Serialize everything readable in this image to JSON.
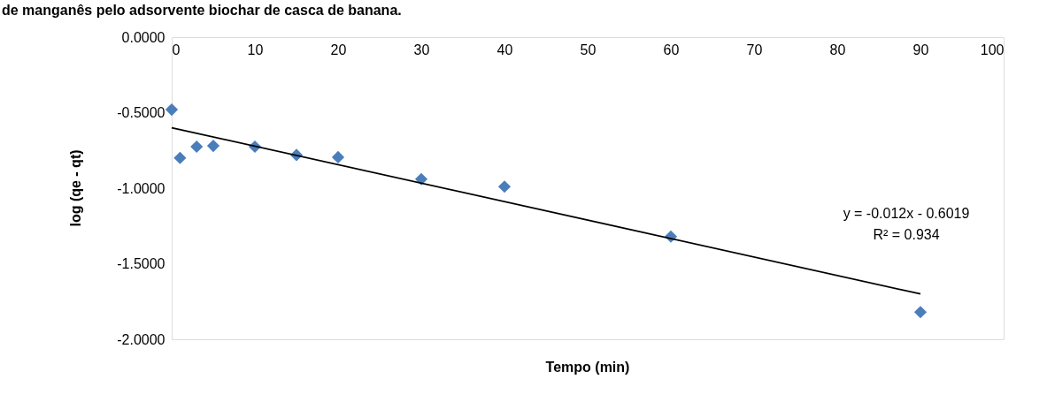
{
  "chart_data": {
    "type": "scatter",
    "title": "de manganês pelo adsorvente biochar de casca de banana.",
    "xlabel": "Tempo (min)",
    "ylabel": "log (qe - qt)",
    "xlim": [
      0,
      100
    ],
    "xticks": [
      0,
      10,
      20,
      30,
      40,
      50,
      60,
      70,
      80,
      90,
      100
    ],
    "ylim": [
      -2,
      0
    ],
    "yticks": [
      {
        "value": -2,
        "label": "-2.0000"
      },
      {
        "value": -1.5,
        "label": "-1.5000"
      },
      {
        "value": -1,
        "label": "-1.0000"
      },
      {
        "value": -0.5,
        "label": "-0.5000"
      },
      {
        "value": 0,
        "label": "0.0000"
      }
    ],
    "grid": false,
    "marker": "diamond",
    "series": [
      {
        "color": "#4a7ebb",
        "x": [
          0,
          1,
          3,
          5,
          10,
          15,
          20,
          30,
          40,
          60,
          90
        ],
        "values": [
          -0.48,
          -0.8,
          -0.725,
          -0.72,
          -0.725,
          -0.78,
          -0.795,
          -0.94,
          -0.99,
          -1.32,
          -1.82
        ]
      },
      {
        "type": "line",
        "color": "#000000",
        "line_style": "solid",
        "marker": "none",
        "x": [
          0,
          90
        ],
        "values": [
          -0.6,
          -1.7
        ]
      }
    ],
    "annotations": [
      "y = -0.012x - 0.6019",
      "R² = 0.934"
    ]
  }
}
